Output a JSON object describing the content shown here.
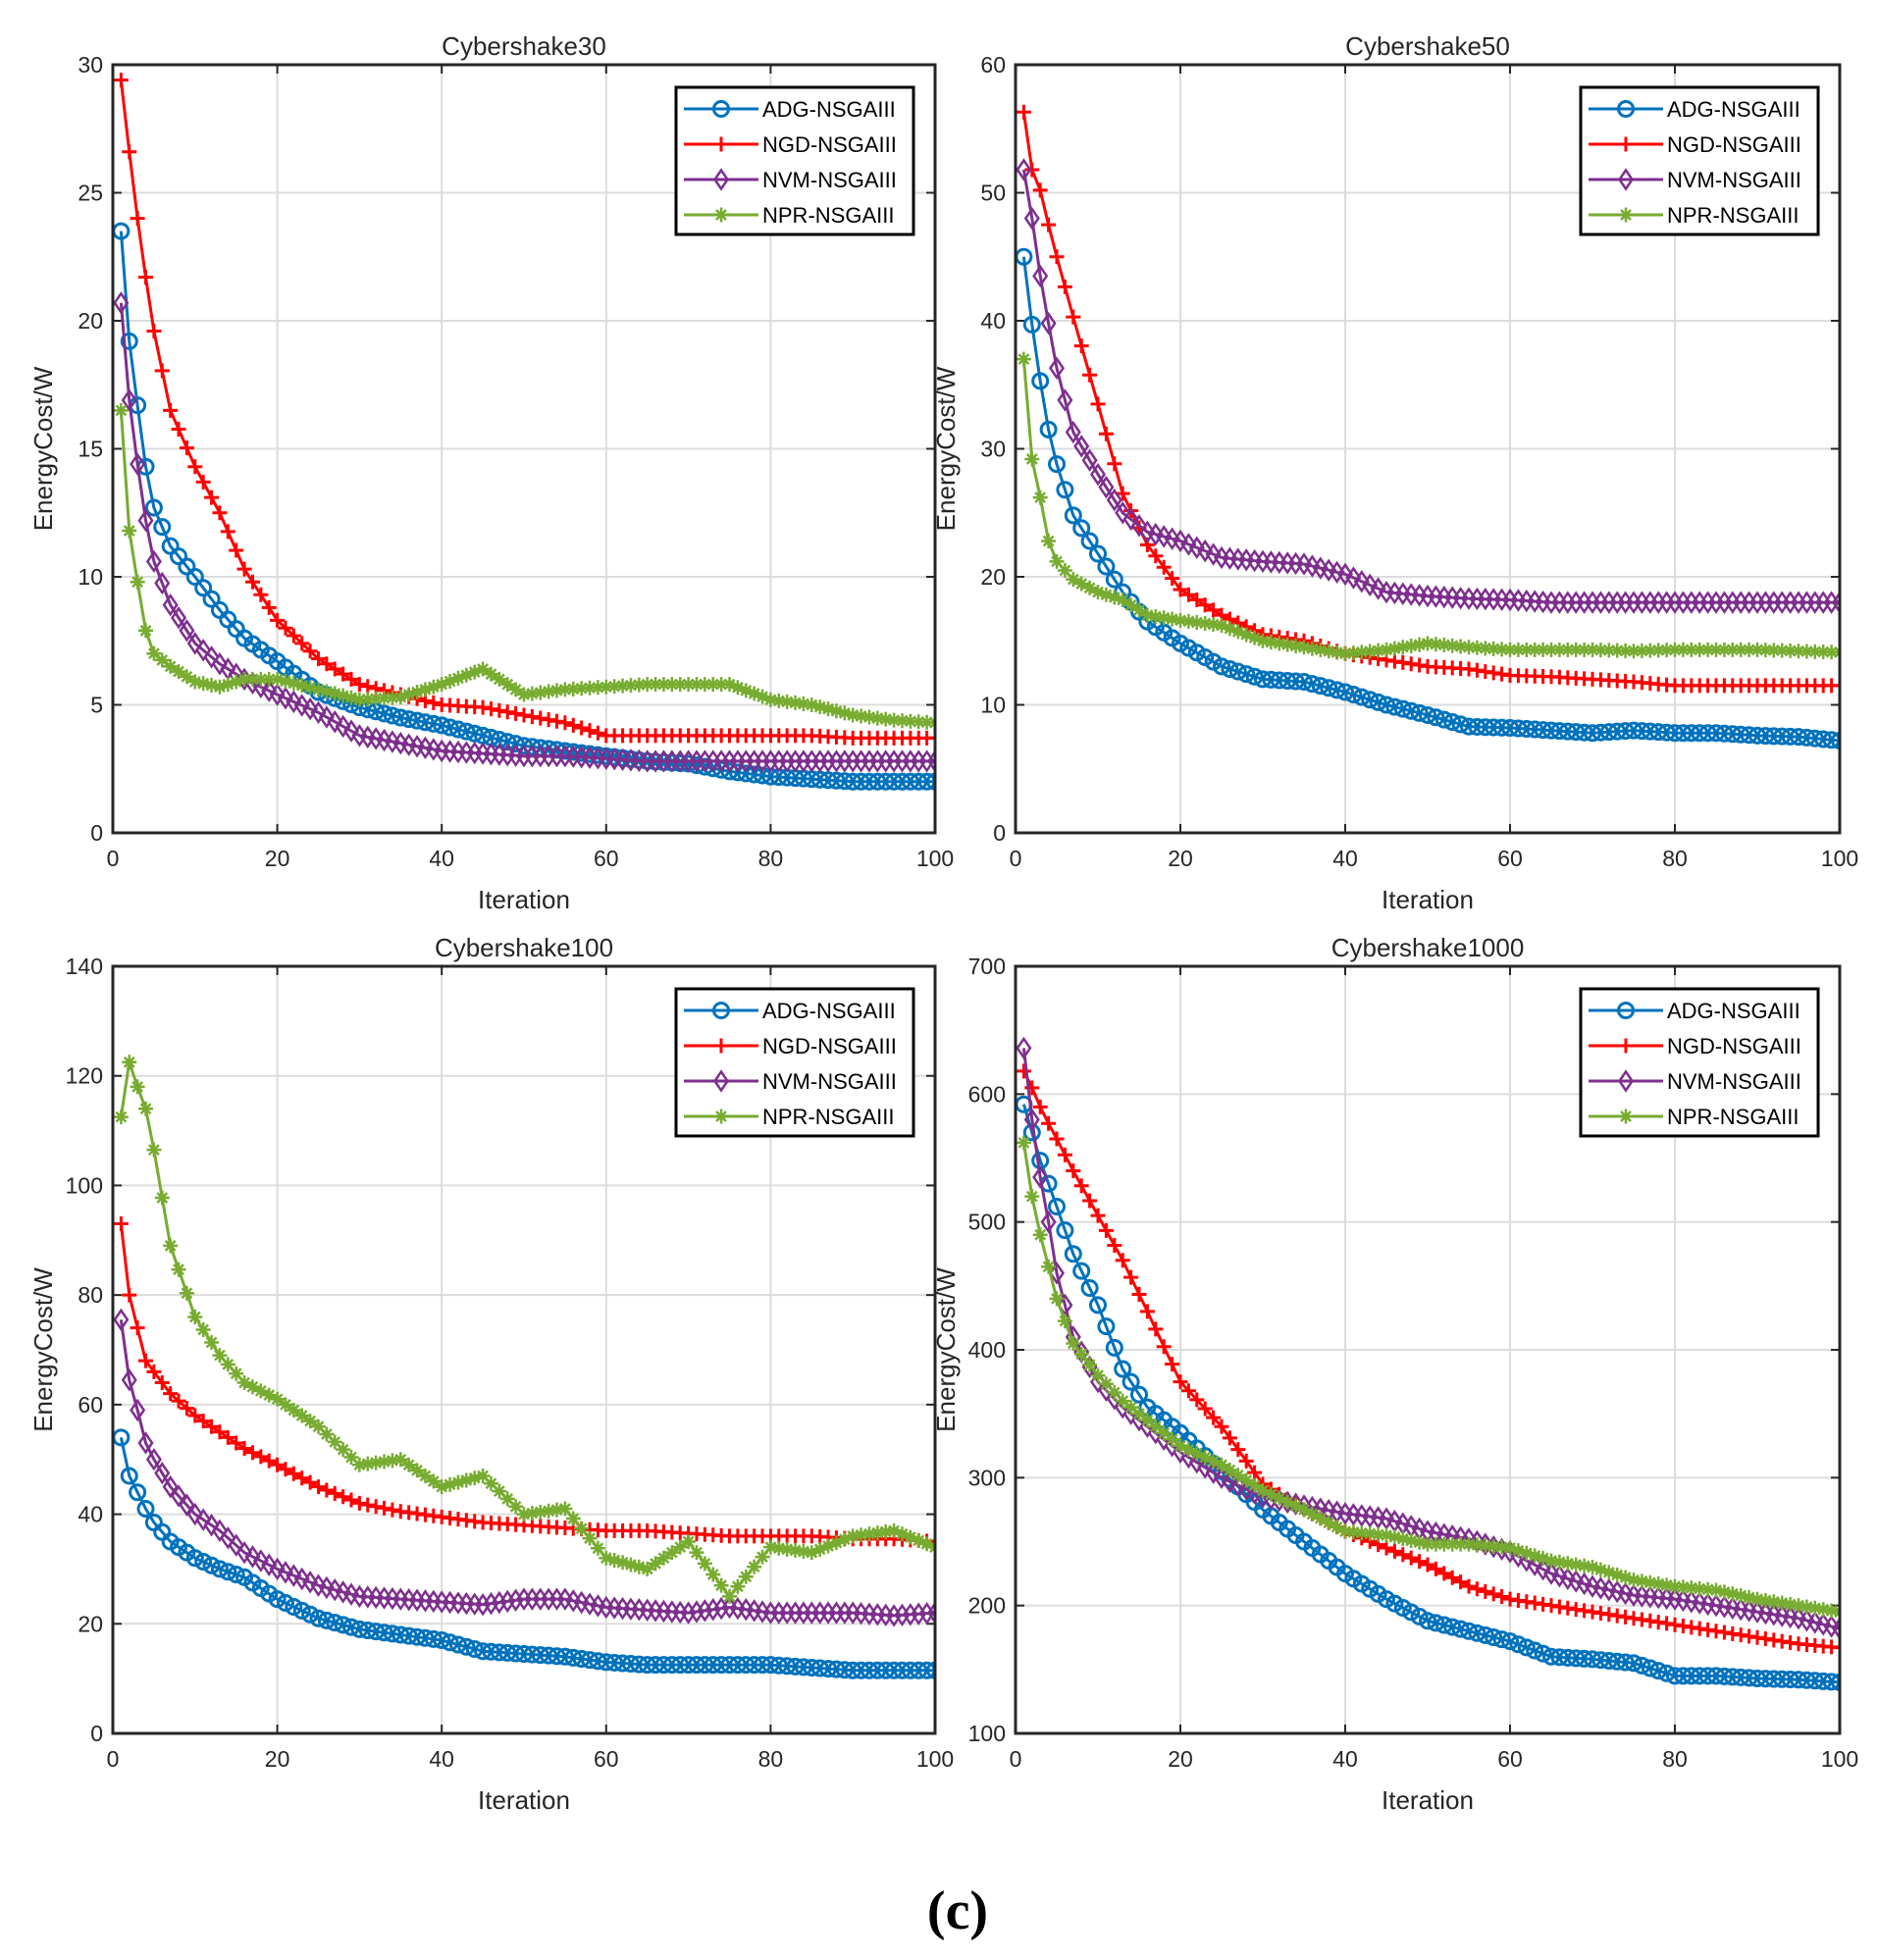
{
  "caption": "(c)",
  "colors": {
    "ADG-NSGAIII": "#0072BD",
    "NGD-NSGAIII": "#FF0000",
    "NVM-NSGAIII": "#7E2F8E",
    "NPR-NSGAIII": "#77AC30"
  },
  "chart_data": [
    {
      "type": "line",
      "title": "Cybershake30",
      "xlabel": "Iteration",
      "ylabel": "EnergyCost/W",
      "xlim": [
        0,
        100
      ],
      "ylim": [
        0,
        30
      ],
      "xticks": [
        "0",
        "20",
        "40",
        "60",
        "80",
        "100"
      ],
      "yticks": [
        "0",
        "5",
        "10",
        "15",
        "20",
        "25",
        "30"
      ],
      "grid": true,
      "legend_position": "top-right",
      "x": [
        1,
        2,
        3,
        4,
        5,
        7,
        10,
        13,
        16,
        20,
        25,
        30,
        35,
        40,
        45,
        50,
        55,
        60,
        65,
        70,
        75,
        80,
        85,
        90,
        95,
        100
      ],
      "series": [
        {
          "name": "ADG-NSGAIII",
          "marker": "circle",
          "values": [
            23.5,
            19.2,
            16.7,
            14.3,
            12.7,
            11.2,
            10.0,
            8.7,
            7.6,
            6.7,
            5.5,
            4.9,
            4.5,
            4.2,
            3.8,
            3.4,
            3.2,
            3.0,
            2.8,
            2.7,
            2.4,
            2.2,
            2.1,
            2.0,
            2.0,
            2.0
          ]
        },
        {
          "name": "NGD-NSGAIII",
          "marker": "plus",
          "values": [
            29.4,
            26.6,
            24.0,
            21.7,
            19.6,
            16.5,
            14.3,
            12.5,
            10.3,
            8.3,
            6.8,
            5.8,
            5.4,
            5.0,
            4.9,
            4.6,
            4.3,
            3.8,
            3.8,
            3.8,
            3.8,
            3.8,
            3.8,
            3.7,
            3.7,
            3.7
          ]
        },
        {
          "name": "NVM-NSGAIII",
          "marker": "diamond",
          "values": [
            20.7,
            16.9,
            14.4,
            12.2,
            10.6,
            8.9,
            7.4,
            6.6,
            6.0,
            5.4,
            4.7,
            3.8,
            3.5,
            3.2,
            3.1,
            3.0,
            3.0,
            2.9,
            2.8,
            2.8,
            2.8,
            2.8,
            2.8,
            2.8,
            2.8,
            2.8
          ]
        },
        {
          "name": "NPR-NSGAIII",
          "marker": "asterisk",
          "values": [
            16.5,
            11.8,
            9.8,
            7.9,
            7.0,
            6.5,
            5.9,
            5.7,
            6.0,
            6.0,
            5.6,
            5.2,
            5.3,
            5.8,
            6.4,
            5.4,
            5.6,
            5.7,
            5.8,
            5.8,
            5.8,
            5.2,
            5.0,
            4.6,
            4.4,
            4.3
          ]
        }
      ]
    },
    {
      "type": "line",
      "title": "Cybershake50",
      "xlabel": "Iteration",
      "ylabel": "EnergyCost/W",
      "xlim": [
        0,
        100
      ],
      "ylim": [
        0,
        60
      ],
      "xticks": [
        "0",
        "20",
        "40",
        "60",
        "80",
        "100"
      ],
      "yticks": [
        "0",
        "10",
        "20",
        "30",
        "40",
        "50",
        "60"
      ],
      "grid": true,
      "legend_position": "top-right",
      "x": [
        1,
        2,
        3,
        4,
        5,
        7,
        10,
        13,
        16,
        20,
        25,
        30,
        35,
        40,
        45,
        50,
        55,
        60,
        65,
        70,
        75,
        80,
        85,
        90,
        95,
        100
      ],
      "series": [
        {
          "name": "ADG-NSGAIII",
          "marker": "circle",
          "values": [
            45,
            39.7,
            35.3,
            31.5,
            28.8,
            24.8,
            21.8,
            18.8,
            16.5,
            14.8,
            13.0,
            12.0,
            11.8,
            11.0,
            10.0,
            9.2,
            8.3,
            8.2,
            8.0,
            7.8,
            8.0,
            7.8,
            7.8,
            7.6,
            7.5,
            7.2
          ]
        },
        {
          "name": "NGD-NSGAIII",
          "marker": "plus",
          "values": [
            56.3,
            51.8,
            50.2,
            47.5,
            45,
            40.3,
            33.5,
            26.5,
            22.5,
            19.0,
            17.0,
            15.5,
            15.0,
            14.0,
            13.5,
            13.0,
            12.8,
            12.3,
            12.2,
            12.0,
            11.8,
            11.5,
            11.5,
            11.5,
            11.5,
            11.5
          ]
        },
        {
          "name": "NVM-NSGAIII",
          "marker": "diamond",
          "values": [
            51.8,
            48,
            43.5,
            39.8,
            36.3,
            31.3,
            28,
            25,
            23.5,
            22.8,
            21.5,
            21.2,
            21,
            20.2,
            18.8,
            18.5,
            18.3,
            18.2,
            18.0,
            18.0,
            18.0,
            18.0,
            18.0,
            18.0,
            18.0,
            18.0
          ]
        },
        {
          "name": "NPR-NSGAIII",
          "marker": "asterisk",
          "values": [
            37,
            29.2,
            26.2,
            22.8,
            21.2,
            19.8,
            18.8,
            18.2,
            17.0,
            16.6,
            16.2,
            15.0,
            14.5,
            14.0,
            14.3,
            14.8,
            14.5,
            14.3,
            14.3,
            14.3,
            14.2,
            14.3,
            14.3,
            14.3,
            14.2,
            14.1
          ]
        }
      ]
    },
    {
      "type": "line",
      "title": "Cybershake100",
      "xlabel": "Iteration",
      "ylabel": "EnergyCost/W",
      "xlim": [
        0,
        100
      ],
      "ylim": [
        0,
        140
      ],
      "xticks": [
        "0",
        "20",
        "40",
        "60",
        "80",
        "100"
      ],
      "yticks": [
        "0",
        "20",
        "40",
        "60",
        "80",
        "100",
        "120",
        "140"
      ],
      "grid": true,
      "legend_position": "top-right",
      "x": [
        1,
        2,
        3,
        4,
        5,
        7,
        10,
        13,
        16,
        20,
        25,
        30,
        35,
        40,
        45,
        50,
        55,
        60,
        65,
        70,
        75,
        80,
        85,
        90,
        95,
        100
      ],
      "series": [
        {
          "name": "ADG-NSGAIII",
          "marker": "circle",
          "values": [
            54,
            47,
            44,
            41,
            38.5,
            35,
            32,
            30,
            28.5,
            24.5,
            21,
            19,
            18,
            17,
            15,
            14.5,
            14,
            13,
            12.5,
            12.5,
            12.5,
            12.5,
            12,
            11.5,
            11.5,
            11.5
          ]
        },
        {
          "name": "NGD-NSGAIII",
          "marker": "plus",
          "values": [
            93,
            80,
            74,
            68,
            66,
            62,
            58,
            55,
            52,
            49,
            45,
            42,
            40.5,
            39.5,
            38.5,
            38,
            37.5,
            37,
            37,
            36.5,
            36,
            36,
            36,
            35.5,
            35.5,
            35
          ]
        },
        {
          "name": "NVM-NSGAIII",
          "marker": "diamond",
          "values": [
            75.5,
            64.5,
            59,
            53,
            50,
            45,
            40,
            37,
            33,
            30,
            27,
            25,
            24.5,
            24,
            23.5,
            24.5,
            24.5,
            23,
            22.5,
            22,
            23,
            22,
            22,
            22,
            21.5,
            22
          ]
        },
        {
          "name": "NPR-NSGAIII",
          "marker": "asterisk",
          "values": [
            112.5,
            122.5,
            118,
            114,
            106.5,
            89,
            76,
            69,
            64,
            61,
            56,
            49,
            50,
            45,
            47,
            40,
            41,
            32,
            30,
            35,
            25,
            34,
            33,
            36,
            37,
            34
          ]
        }
      ]
    },
    {
      "type": "line",
      "title": "Cybershake1000",
      "xlabel": "Iteration",
      "ylabel": "EnergyCost/W",
      "xlim": [
        0,
        100
      ],
      "ylim": [
        100,
        700
      ],
      "xticks": [
        "0",
        "20",
        "40",
        "60",
        "80",
        "100"
      ],
      "yticks": [
        "100",
        "200",
        "300",
        "400",
        "500",
        "600",
        "700"
      ],
      "grid": true,
      "legend_position": "top-right",
      "x": [
        1,
        2,
        3,
        4,
        5,
        7,
        10,
        13,
        16,
        20,
        25,
        30,
        35,
        40,
        45,
        50,
        55,
        60,
        65,
        70,
        75,
        80,
        85,
        90,
        95,
        100
      ],
      "series": [
        {
          "name": "ADG-NSGAIII",
          "marker": "circle",
          "values": [
            592,
            570,
            548,
            530,
            512,
            475,
            435,
            385,
            355,
            335,
            305,
            275,
            250,
            225,
            205,
            188,
            180,
            172,
            160,
            158,
            155,
            145,
            145,
            143,
            142,
            140
          ]
        },
        {
          "name": "NGD-NSGAIII",
          "marker": "plus",
          "values": [
            618,
            605,
            590,
            577,
            565,
            540,
            505,
            470,
            430,
            375,
            340,
            295,
            275,
            258,
            245,
            232,
            215,
            205,
            200,
            195,
            190,
            185,
            180,
            175,
            170,
            167
          ]
        },
        {
          "name": "NVM-NSGAIII",
          "marker": "diamond",
          "values": [
            636,
            580,
            535,
            500,
            460,
            410,
            375,
            355,
            340,
            320,
            300,
            285,
            278,
            272,
            268,
            258,
            252,
            242,
            225,
            215,
            208,
            205,
            200,
            195,
            190,
            182
          ]
        },
        {
          "name": "NPR-NSGAIII",
          "marker": "asterisk",
          "values": [
            562,
            520,
            490,
            465,
            440,
            405,
            380,
            360,
            345,
            325,
            310,
            290,
            275,
            258,
            255,
            248,
            248,
            245,
            235,
            230,
            220,
            215,
            212,
            205,
            200,
            195
          ]
        }
      ]
    }
  ]
}
